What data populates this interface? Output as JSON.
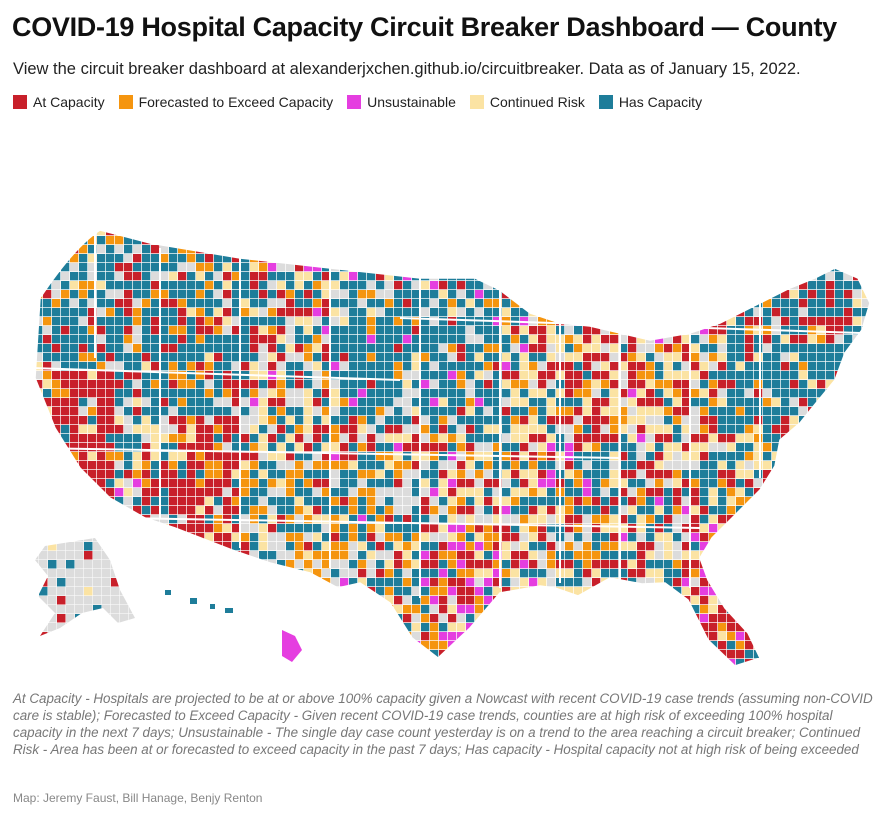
{
  "title": "COVID-19 Hospital Capacity Circuit Breaker Dashboard — County",
  "subtitle": "View the circuit breaker dashboard at alexanderjxchen.github.io/circuitbreaker. Data as of January 15, 2022.",
  "legend": [
    {
      "label": "At Capacity",
      "color": "#c8202a"
    },
    {
      "label": "Forecasted to Exceed Capacity",
      "color": "#f5950f"
    },
    {
      "label": "Unsustainable",
      "color": "#e53ee0"
    },
    {
      "label": "Continued Risk",
      "color": "#fbe3a3"
    },
    {
      "label": "Has Capacity",
      "color": "#1e7d9a"
    }
  ],
  "no_data_color": "#dcdcdc",
  "footnote": "At Capacity - Hospitals are projected to be at or above 100% capacity given a Nowcast with recent COVID-19 case trends (assuming non-COVID care is stable); Forecasted to Exceed Capacity - Given recent COVID-19 case trends, counties are at high risk of exceeding 100% hospital capacity in the next 7 days; Unsustainable - The single day case count yesterday is on a trend to the area reaching a circuit breaker; Continued Risk - Area has been at or forecasted to exceed capacity in the past 7 days; Has capacity - Hospital capacity not at high risk of being exceeded",
  "credit": "Map: Jeremy Faust, Bill Hanage, Benjy Renton"
}
